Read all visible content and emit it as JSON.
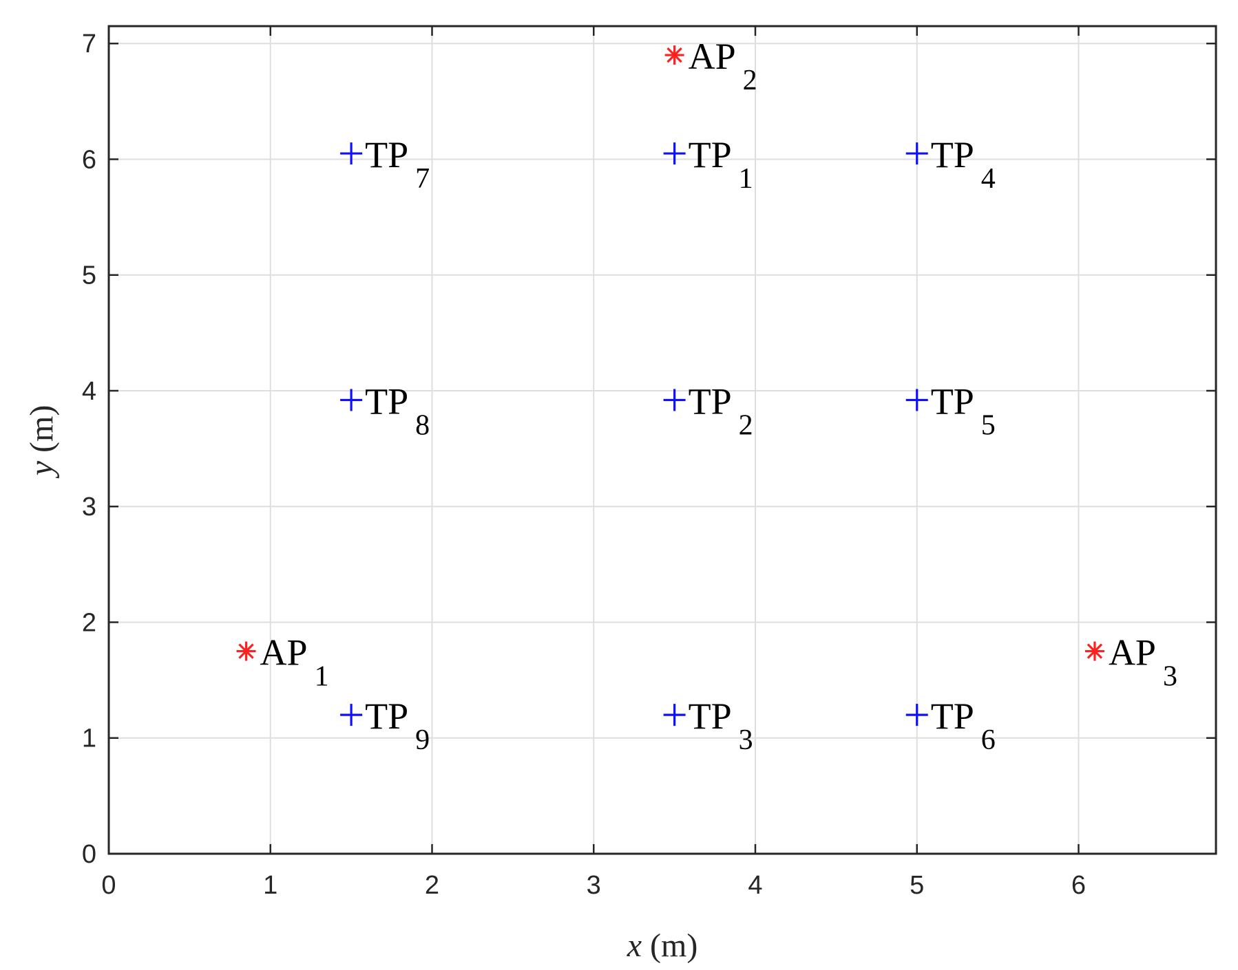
{
  "chart_data": {
    "type": "scatter",
    "title": "",
    "xlabel": {
      "var": "x",
      "unit": " (m)"
    },
    "ylabel": {
      "var": "y",
      "unit": " (m)"
    },
    "xlim": [
      0,
      6.85
    ],
    "ylim": [
      0,
      7.15
    ],
    "xticks": [
      0,
      1,
      2,
      3,
      4,
      5,
      6
    ],
    "yticks": [
      0,
      1,
      2,
      3,
      4,
      5,
      6,
      7
    ],
    "grid": true,
    "series": [
      {
        "marker": "asterisk",
        "color": "#ff2020",
        "points": [
          {
            "x": 0.85,
            "y": 1.75,
            "base": "AP",
            "sub": "1"
          },
          {
            "x": 3.5,
            "y": 6.9,
            "base": "AP",
            "sub": "2"
          },
          {
            "x": 6.1,
            "y": 1.75,
            "base": "AP",
            "sub": "3"
          }
        ]
      },
      {
        "marker": "plus",
        "color": "#1010ff",
        "points": [
          {
            "x": 3.5,
            "y": 6.05,
            "base": "TP",
            "sub": "1"
          },
          {
            "x": 3.5,
            "y": 3.92,
            "base": "TP",
            "sub": "2"
          },
          {
            "x": 3.5,
            "y": 1.2,
            "base": "TP",
            "sub": "3"
          },
          {
            "x": 5.0,
            "y": 6.05,
            "base": "TP",
            "sub": "4"
          },
          {
            "x": 5.0,
            "y": 3.92,
            "base": "TP",
            "sub": "5"
          },
          {
            "x": 5.0,
            "y": 1.2,
            "base": "TP",
            "sub": "6"
          },
          {
            "x": 1.5,
            "y": 6.05,
            "base": "TP",
            "sub": "7"
          },
          {
            "x": 1.5,
            "y": 3.92,
            "base": "TP",
            "sub": "8"
          },
          {
            "x": 1.5,
            "y": 1.2,
            "base": "TP",
            "sub": "9"
          }
        ]
      }
    ]
  }
}
